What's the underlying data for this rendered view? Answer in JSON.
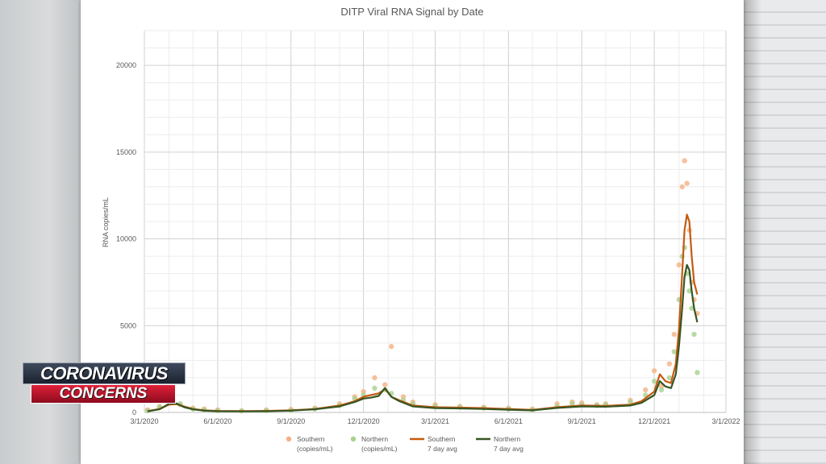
{
  "chart_data": {
    "type": "scatter",
    "title": "DITP Viral RNA Signal by Date",
    "xlabel": "",
    "ylabel": "RNA copies/mL",
    "x_ticks": [
      "3/1/2020",
      "6/1/2020",
      "9/1/2020",
      "12/1/2020",
      "3/1/2021",
      "6/1/2021",
      "9/1/2021",
      "12/1/2021",
      "3/1/2022"
    ],
    "y_ticks": [
      "0",
      "5000",
      "10000",
      "15000",
      "20000"
    ],
    "ylim": [
      0,
      22000
    ],
    "grid": true,
    "legend_position": "bottom",
    "legend": [
      {
        "name": "Southern\n(copies/mL)",
        "marker": "dot",
        "color": "#f4b183"
      },
      {
        "name": "Northern\n(copies/mL)",
        "marker": "dot",
        "color": "#a9d18e"
      },
      {
        "name": "Southern\n7 day avg",
        "marker": "line",
        "color": "#c55a11"
      },
      {
        "name": "Northern\n7 day avg",
        "marker": "line",
        "color": "#375623"
      }
    ],
    "series": [
      {
        "name": "Southern (copies/mL)",
        "color": "#f4b183",
        "x": [
          "2020-03-05",
          "2020-03-20",
          "2020-04-01",
          "2020-04-15",
          "2020-05-01",
          "2020-05-15",
          "2020-06-01",
          "2020-07-01",
          "2020-08-01",
          "2020-09-01",
          "2020-10-01",
          "2020-11-01",
          "2020-11-20",
          "2020-12-01",
          "2020-12-15",
          "2020-12-28",
          "2021-01-05",
          "2021-01-20",
          "2021-02-01",
          "2021-03-01",
          "2021-04-01",
          "2021-05-01",
          "2021-06-01",
          "2021-07-01",
          "2021-08-01",
          "2021-08-20",
          "2021-09-01",
          "2021-09-20",
          "2021-10-01",
          "2021-11-01",
          "2021-11-20",
          "2021-12-01",
          "2021-12-10",
          "2021-12-20",
          "2021-12-26",
          "2022-01-01",
          "2022-01-05",
          "2022-01-08",
          "2022-01-11",
          "2022-01-14",
          "2022-01-17",
          "2022-01-20",
          "2022-01-24"
        ],
        "y": [
          150,
          350,
          550,
          450,
          250,
          200,
          150,
          100,
          150,
          180,
          250,
          500,
          900,
          1200,
          2000,
          1600,
          3800,
          900,
          600,
          450,
          350,
          300,
          250,
          200,
          500,
          600,
          550,
          450,
          500,
          700,
          1300,
          2400,
          1500,
          2800,
          4500,
          8500,
          13000,
          14500,
          13200,
          10500,
          7500,
          6500,
          5700
        ]
      },
      {
        "name": "Northern (copies/mL)",
        "color": "#a9d18e",
        "x": [
          "2020-03-05",
          "2020-03-20",
          "2020-04-01",
          "2020-04-15",
          "2020-05-01",
          "2020-05-15",
          "2020-06-01",
          "2020-07-01",
          "2020-08-01",
          "2020-09-01",
          "2020-10-01",
          "2020-11-01",
          "2020-11-20",
          "2020-12-01",
          "2020-12-15",
          "2020-12-28",
          "2021-01-05",
          "2021-01-20",
          "2021-02-01",
          "2021-03-01",
          "2021-04-01",
          "2021-05-01",
          "2021-06-01",
          "2021-07-01",
          "2021-08-01",
          "2021-08-20",
          "2021-09-01",
          "2021-09-20",
          "2021-10-01",
          "2021-11-01",
          "2021-11-20",
          "2021-12-01",
          "2021-12-10",
          "2021-12-20",
          "2021-12-26",
          "2022-01-01",
          "2022-01-05",
          "2022-01-08",
          "2022-01-11",
          "2022-01-14",
          "2022-01-17",
          "2022-01-20",
          "2022-01-24"
        ],
        "y": [
          100,
          300,
          700,
          500,
          200,
          150,
          100,
          80,
          100,
          120,
          200,
          400,
          800,
          1000,
          1400,
          1300,
          1100,
          700,
          500,
          350,
          300,
          250,
          200,
          150,
          350,
          500,
          450,
          400,
          450,
          600,
          1000,
          1800,
          1300,
          2000,
          3500,
          6500,
          9000,
          9500,
          8000,
          7000,
          6000,
          4500,
          2300
        ]
      },
      {
        "name": "Southern 7 day avg",
        "color": "#c55a11",
        "x": [
          "2020-03-05",
          "2020-03-20",
          "2020-04-01",
          "2020-04-10",
          "2020-04-20",
          "2020-05-01",
          "2020-05-15",
          "2020-06-01",
          "2020-07-01",
          "2020-08-01",
          "2020-09-01",
          "2020-10-01",
          "2020-11-01",
          "2020-11-20",
          "2020-12-01",
          "2020-12-10",
          "2020-12-20",
          "2020-12-28",
          "2021-01-05",
          "2021-01-15",
          "2021-02-01",
          "2021-03-01",
          "2021-04-01",
          "2021-05-01",
          "2021-06-01",
          "2021-07-01",
          "2021-08-01",
          "2021-09-01",
          "2021-10-01",
          "2021-11-01",
          "2021-11-15",
          "2021-12-01",
          "2021-12-08",
          "2021-12-15",
          "2021-12-22",
          "2021-12-28",
          "2022-01-01",
          "2022-01-05",
          "2022-01-08",
          "2022-01-11",
          "2022-01-14",
          "2022-01-17",
          "2022-01-20",
          "2022-01-24"
        ],
        "y": [
          80,
          200,
          450,
          480,
          350,
          200,
          120,
          90,
          80,
          90,
          120,
          200,
          400,
          650,
          900,
          1000,
          1100,
          1350,
          900,
          700,
          400,
          300,
          280,
          250,
          200,
          150,
          300,
          400,
          380,
          450,
          650,
          1200,
          2200,
          1800,
          1700,
          2800,
          4800,
          8000,
          10500,
          11400,
          11000,
          9000,
          7500,
          6800
        ]
      },
      {
        "name": "Northern 7 day avg",
        "color": "#375623",
        "x": [
          "2020-03-05",
          "2020-03-20",
          "2020-04-01",
          "2020-04-10",
          "2020-04-20",
          "2020-05-01",
          "2020-05-15",
          "2020-06-01",
          "2020-07-01",
          "2020-08-01",
          "2020-09-01",
          "2020-10-01",
          "2020-11-01",
          "2020-11-20",
          "2020-12-01",
          "2020-12-10",
          "2020-12-20",
          "2020-12-28",
          "2021-01-05",
          "2021-01-15",
          "2021-02-01",
          "2021-03-01",
          "2021-04-01",
          "2021-05-01",
          "2021-06-01",
          "2021-07-01",
          "2021-08-01",
          "2021-09-01",
          "2021-10-01",
          "2021-11-01",
          "2021-11-15",
          "2021-12-01",
          "2021-12-08",
          "2021-12-15",
          "2021-12-22",
          "2021-12-28",
          "2022-01-01",
          "2022-01-05",
          "2022-01-08",
          "2022-01-11",
          "2022-01-14",
          "2022-01-17",
          "2022-01-20",
          "2022-01-24"
        ],
        "y": [
          60,
          180,
          500,
          520,
          300,
          180,
          100,
          70,
          60,
          70,
          100,
          180,
          350,
          600,
          800,
          850,
          950,
          1400,
          900,
          650,
          350,
          250,
          230,
          200,
          160,
          120,
          260,
          350,
          330,
          400,
          550,
          1000,
          1800,
          1500,
          1400,
          2200,
          3800,
          6000,
          7800,
          8500,
          8200,
          7000,
          6000,
          5200
        ]
      }
    ]
  },
  "logo": {
    "line1": "CORONAVIRUS",
    "line2": "CONCERNS"
  }
}
